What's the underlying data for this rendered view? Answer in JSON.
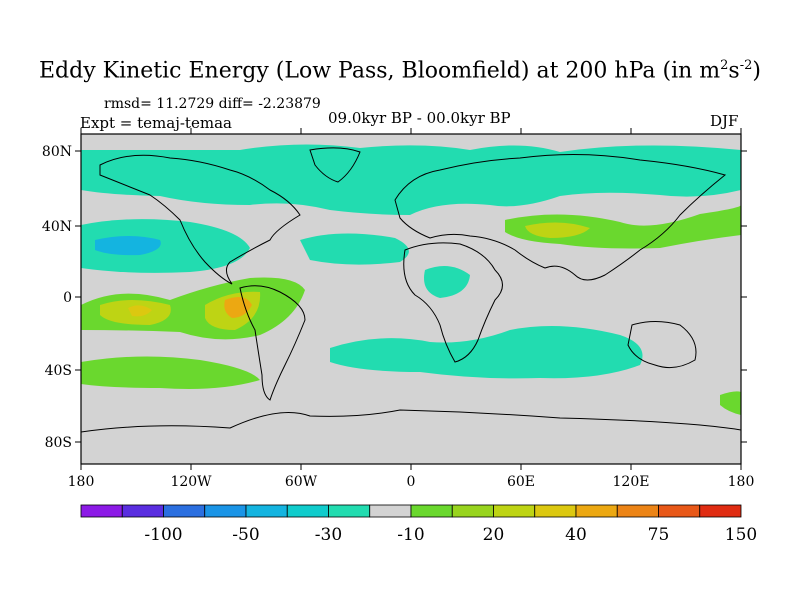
{
  "title": {
    "main": "Eddy Kinetic Energy (Low Pass, Bloomfield) at 200 hPa (in m",
    "sup1": "2",
    "mid": "s",
    "sup2": "-2",
    "end": ")"
  },
  "stats": "rmsd= 11.2729 diff= -2.23879",
  "experiment": "Expt = temaj-temaa",
  "period": "09.0kyr BP - 00.0kyr BP",
  "season": "DJF",
  "map": {
    "background": "#d3d3d3",
    "lat_ticks": [
      "80N",
      "40N",
      "0",
      "40S",
      "80S"
    ],
    "lon_ticks": [
      "180",
      "120W",
      "60W",
      "0",
      "60E",
      "120E",
      "180"
    ]
  },
  "colorbar": {
    "colors": [
      "#8c1ae6",
      "#5a2ee0",
      "#2b6fe0",
      "#1a94e6",
      "#14b4e0",
      "#10cccc",
      "#22dcb0",
      "#d3d3d3",
      "#6ad82e",
      "#98d41e",
      "#bed414",
      "#dcc810",
      "#eca812",
      "#ec8416",
      "#e85818",
      "#e02c12"
    ],
    "labels": [
      "-100",
      "-50",
      "-30",
      "-10",
      "20",
      "40",
      "75",
      "150"
    ]
  },
  "regions": [
    {
      "name": "nh-high-lat-band",
      "color": "#22dcb0"
    },
    {
      "name": "north-pacific-negative",
      "color": "#22dcb0"
    },
    {
      "name": "north-pacific-core",
      "color": "#14b4e0"
    },
    {
      "name": "north-atlantic-negative",
      "color": "#22dcb0"
    },
    {
      "name": "north-africa-negative",
      "color": "#22dcb0"
    },
    {
      "name": "asia-jet-positive",
      "color": "#6ad82e"
    },
    {
      "name": "asia-jet-core",
      "color": "#bed414"
    },
    {
      "name": "east-pacific-positive",
      "color": "#6ad82e"
    },
    {
      "name": "east-pacific-core",
      "color": "#bed414"
    },
    {
      "name": "east-pacific-max",
      "color": "#eca812"
    },
    {
      "name": "central-pacific-max",
      "color": "#dcc810"
    },
    {
      "name": "southern-ocean-negative",
      "color": "#22dcb0"
    },
    {
      "name": "southern-ocean-positive",
      "color": "#6ad82e"
    }
  ]
}
